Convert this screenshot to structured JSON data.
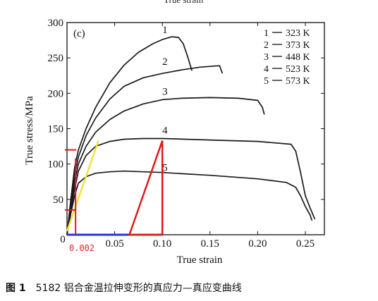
{
  "figure": {
    "top_cut_text": "True strain",
    "caption_label": "图 1",
    "caption_text": "5182 铝合金温拉伸变形的真应力—真应变曲线"
  },
  "chart_data": {
    "type": "line",
    "panel_label": "(c)",
    "xlabel": "True strain",
    "ylabel": "True stress/MPa",
    "xlim": [
      0,
      0.27
    ],
    "ylim": [
      0,
      300
    ],
    "xticks": [
      0.05,
      0.1,
      0.15,
      0.2,
      0.25
    ],
    "xtick_labels": [
      "0.05",
      "0.10",
      "0.15",
      "0.20",
      "0.25"
    ],
    "yticks": [
      0,
      50,
      100,
      150,
      200,
      250,
      300
    ],
    "ytick_labels": [
      "0",
      "50",
      "100",
      "150",
      "200",
      "250",
      "300"
    ],
    "origin_label": "0",
    "grid": false,
    "legend_position": "top-right",
    "legend": [
      {
        "num": "1",
        "label": "323 K"
      },
      {
        "num": "2",
        "label": "373 K"
      },
      {
        "num": "3",
        "label": "448 K"
      },
      {
        "num": "4",
        "label": "523 K"
      },
      {
        "num": "5",
        "label": "573 K"
      }
    ],
    "series": [
      {
        "name": "1",
        "label_at": [
          0.1,
          285
        ],
        "points": [
          [
            0,
            0
          ],
          [
            0.004,
            50
          ],
          [
            0.008,
            95
          ],
          [
            0.012,
            120
          ],
          [
            0.02,
            150
          ],
          [
            0.03,
            180
          ],
          [
            0.045,
            215
          ],
          [
            0.06,
            240
          ],
          [
            0.075,
            258
          ],
          [
            0.09,
            270
          ],
          [
            0.1,
            276
          ],
          [
            0.11,
            280
          ],
          [
            0.117,
            279
          ],
          [
            0.122,
            270
          ],
          [
            0.127,
            250
          ],
          [
            0.131,
            232
          ]
        ]
      },
      {
        "name": "2",
        "label_at": [
          0.1,
          240
        ],
        "points": [
          [
            0,
            0
          ],
          [
            0.004,
            45
          ],
          [
            0.008,
            85
          ],
          [
            0.012,
            110
          ],
          [
            0.02,
            140
          ],
          [
            0.03,
            165
          ],
          [
            0.045,
            192
          ],
          [
            0.06,
            210
          ],
          [
            0.08,
            222
          ],
          [
            0.1,
            228
          ],
          [
            0.12,
            233
          ],
          [
            0.14,
            237
          ],
          [
            0.15,
            238
          ],
          [
            0.16,
            239
          ],
          [
            0.163,
            228
          ]
        ]
      },
      {
        "name": "3",
        "label_at": [
          0.1,
          198
        ],
        "points": [
          [
            0,
            0
          ],
          [
            0.004,
            40
          ],
          [
            0.008,
            75
          ],
          [
            0.012,
            100
          ],
          [
            0.02,
            125
          ],
          [
            0.03,
            145
          ],
          [
            0.045,
            163
          ],
          [
            0.06,
            175
          ],
          [
            0.08,
            185
          ],
          [
            0.1,
            191
          ],
          [
            0.12,
            193
          ],
          [
            0.15,
            194
          ],
          [
            0.18,
            193
          ],
          [
            0.2,
            190
          ],
          [
            0.205,
            180
          ],
          [
            0.207,
            170
          ]
        ]
      },
      {
        "name": "4",
        "label_at": [
          0.1,
          143
        ],
        "points": [
          [
            0,
            0
          ],
          [
            0.004,
            35
          ],
          [
            0.008,
            65
          ],
          [
            0.012,
            90
          ],
          [
            0.02,
            112
          ],
          [
            0.03,
            125
          ],
          [
            0.045,
            132
          ],
          [
            0.06,
            135
          ],
          [
            0.08,
            136
          ],
          [
            0.1,
            136
          ],
          [
            0.15,
            134
          ],
          [
            0.2,
            132
          ],
          [
            0.235,
            128
          ],
          [
            0.24,
            118
          ],
          [
            0.245,
            88
          ],
          [
            0.25,
            55
          ],
          [
            0.255,
            38
          ],
          [
            0.26,
            22
          ]
        ]
      },
      {
        "name": "5",
        "label_at": [
          0.1,
          90
        ],
        "points": [
          [
            0,
            0
          ],
          [
            0.004,
            30
          ],
          [
            0.008,
            55
          ],
          [
            0.012,
            73
          ],
          [
            0.02,
            82
          ],
          [
            0.03,
            87
          ],
          [
            0.045,
            89
          ],
          [
            0.06,
            90
          ],
          [
            0.08,
            89
          ],
          [
            0.1,
            88
          ],
          [
            0.15,
            84
          ],
          [
            0.2,
            79
          ],
          [
            0.23,
            74
          ],
          [
            0.24,
            67
          ],
          [
            0.245,
            55
          ],
          [
            0.25,
            40
          ],
          [
            0.255,
            28
          ],
          [
            0.257,
            20
          ]
        ]
      }
    ],
    "annotations": {
      "text_label": "0.002",
      "text_label_color": "#e02424",
      "yellow_line": {
        "color": "#f2e23a",
        "from": [
          0.0,
          5
        ],
        "to": [
          0.033,
          133
        ]
      },
      "red_triangle": {
        "color": "#e01818",
        "points": [
          [
            0.0655,
            0
          ],
          [
            0.1,
            133
          ],
          [
            0.1,
            0
          ]
        ]
      },
      "red_vertical": {
        "color": "#e01818",
        "x": 0.009,
        "y_range": [
          0,
          108
        ]
      },
      "red_tick_marks": [
        120,
        35
      ],
      "red_tick_color": "#e01818",
      "blue_segment": {
        "color": "#2438e0",
        "x_range": [
          0,
          0.0655
        ],
        "y": 0
      },
      "green_segment": {
        "color": "#4ad04a",
        "x_range": [
          0.0655,
          0.1
        ],
        "y": 0
      }
    }
  }
}
